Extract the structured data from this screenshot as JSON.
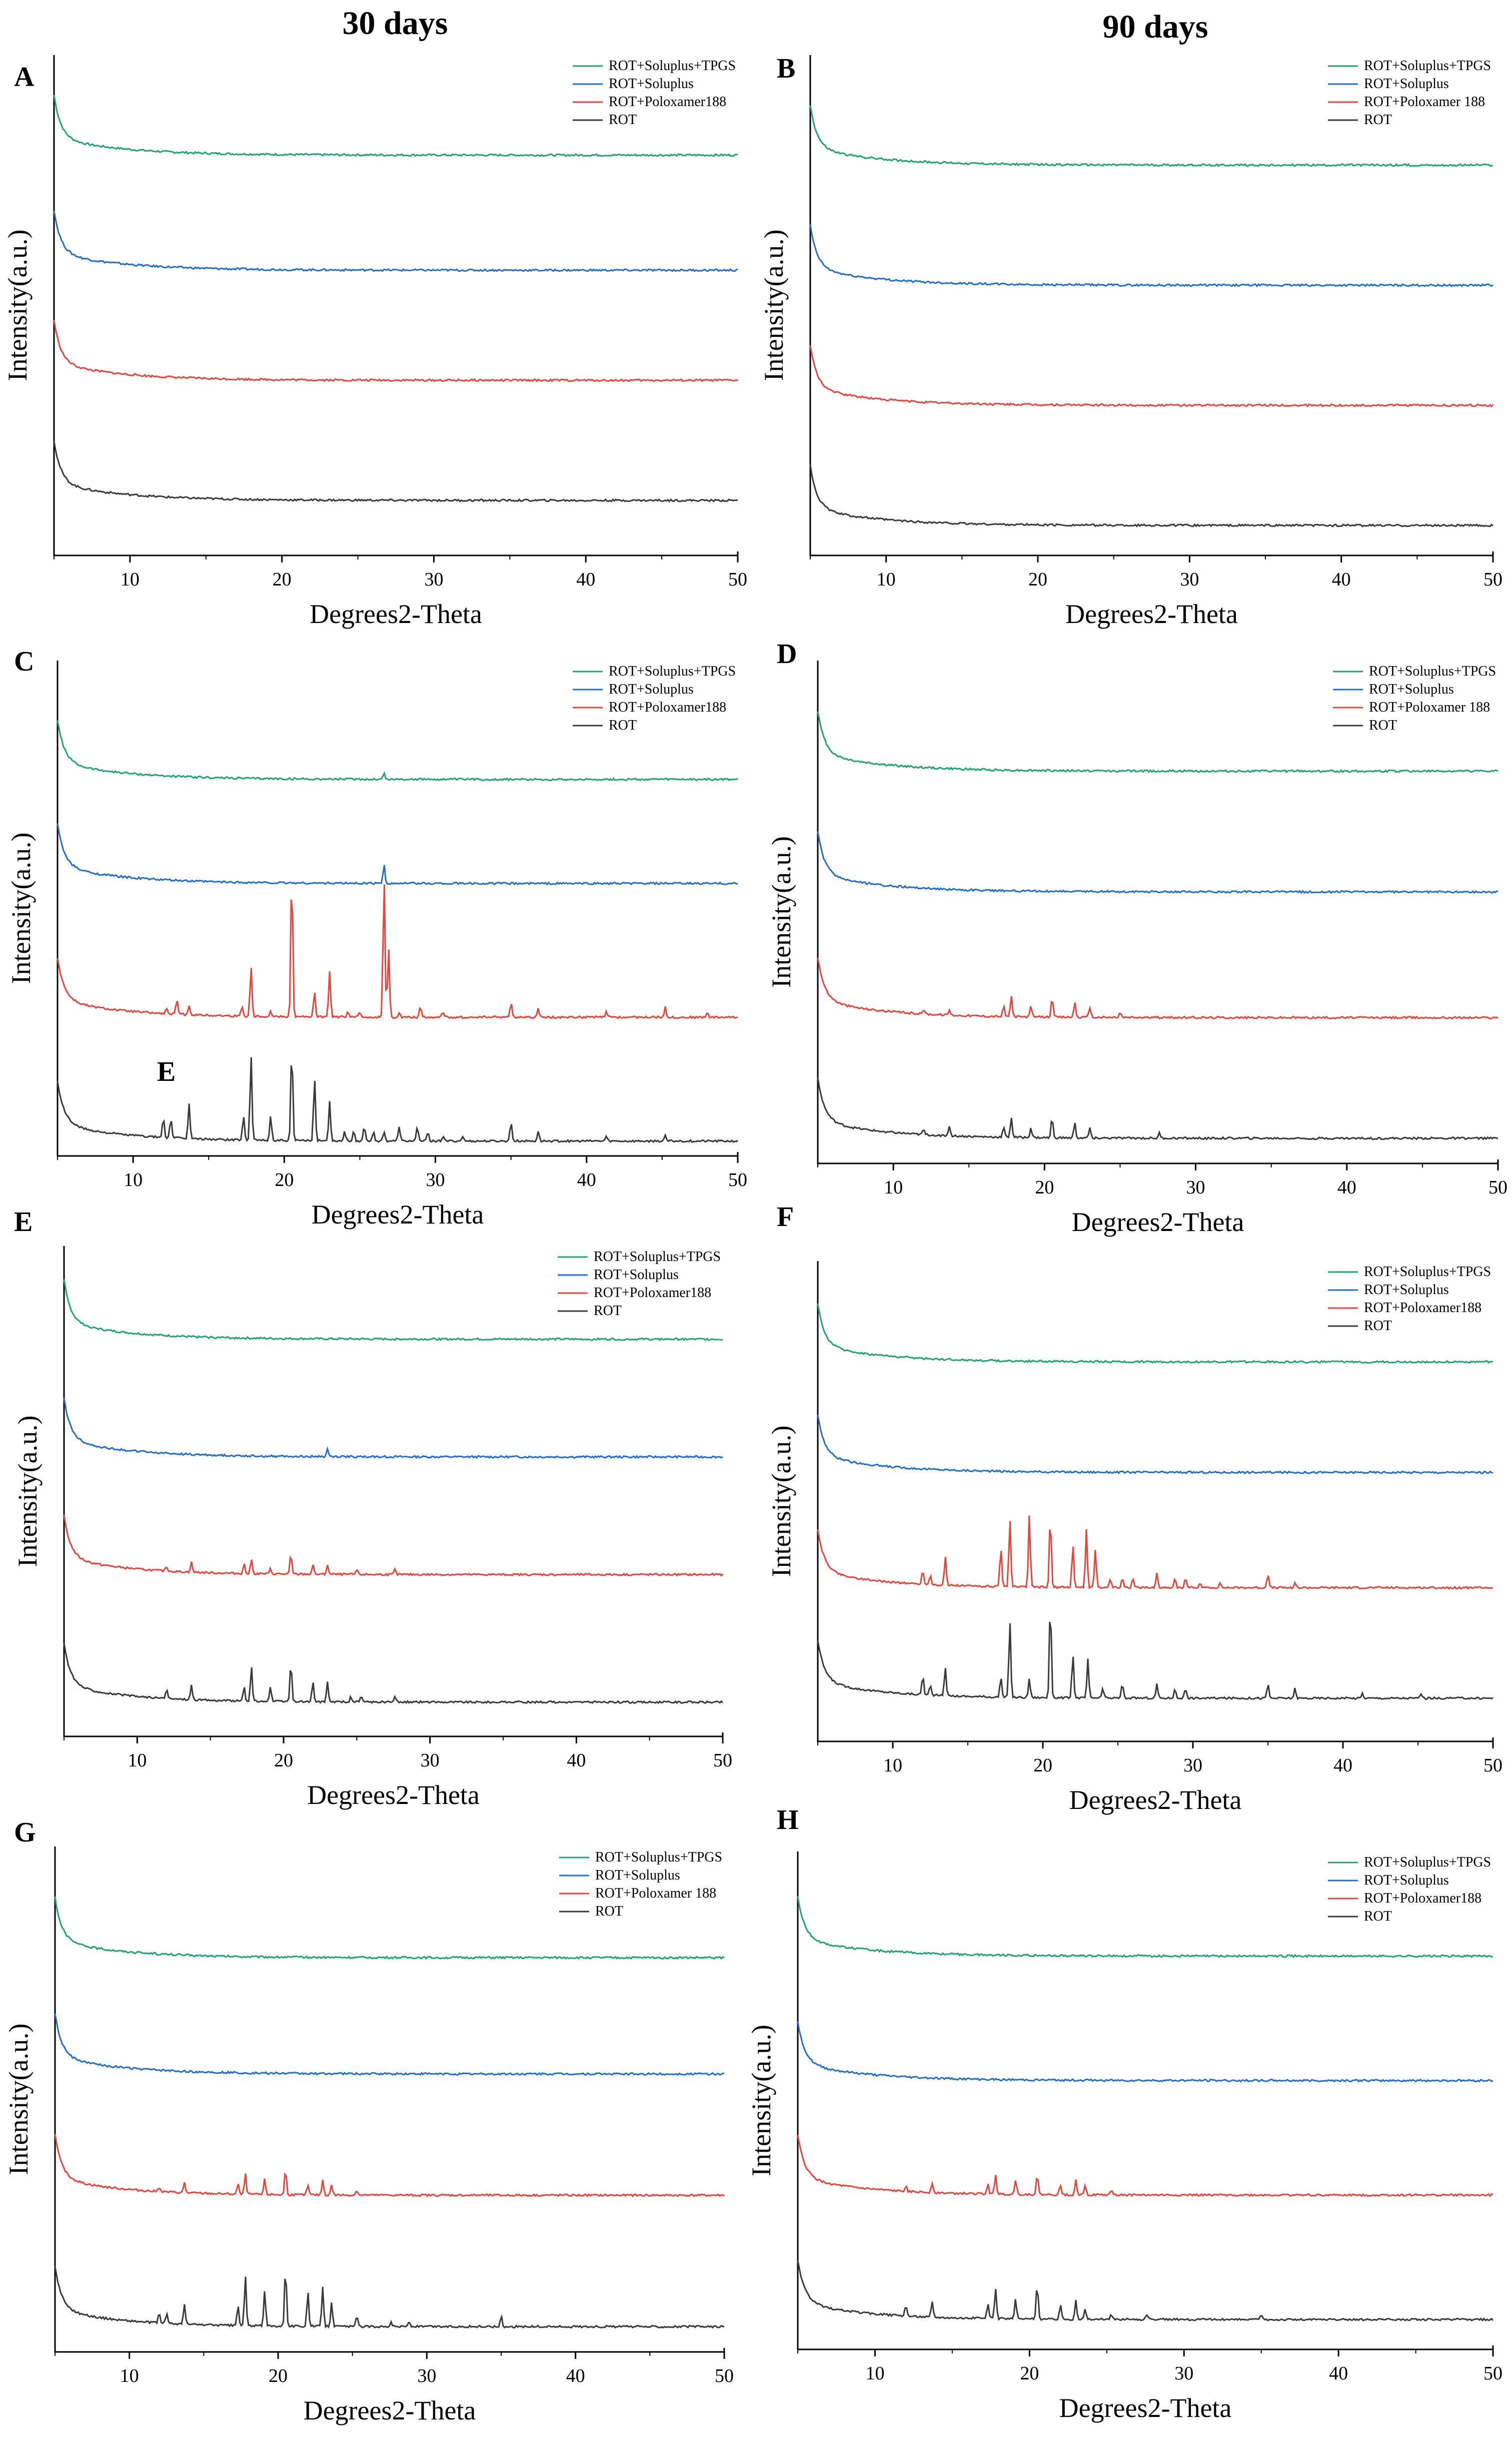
{
  "figure": {
    "column_titles": [
      "30 days",
      "90 days"
    ]
  },
  "chart_data": [
    {
      "panel": "A",
      "type": "line",
      "xlabel": "Degrees2-Theta",
      "ylabel": "Intensity(a.u.)",
      "xlim": [
        5,
        50
      ],
      "xticks": [
        10,
        20,
        30,
        40,
        50
      ],
      "legend": [
        "ROT+Soluplus+TPGS",
        "ROT+Soluplus",
        "ROT+Poloxamer188",
        "ROT"
      ],
      "legend_position": "top-right",
      "series": [
        {
          "name": "ROT+Soluplus+TPGS",
          "color": "#1ea672",
          "baseline": 0.8,
          "peaks": []
        },
        {
          "name": "ROT+Soluplus",
          "color": "#1f6fd1",
          "baseline": 0.57,
          "peaks": []
        },
        {
          "name": "ROT+Poloxamer188",
          "color": "#e8443a",
          "baseline": 0.35,
          "peaks": []
        },
        {
          "name": "ROT",
          "color": "#3a3a3a",
          "baseline": 0.11,
          "peaks": []
        }
      ]
    },
    {
      "panel": "B",
      "type": "line",
      "xlabel": "Degrees2-Theta",
      "ylabel": "Intensity(a.u.)",
      "xlim": [
        5,
        50
      ],
      "xticks": [
        10,
        20,
        30,
        40,
        50
      ],
      "legend": [
        "ROT+Soluplus+TPGS",
        "ROT+Soluplus",
        "ROT+Poloxamer 188",
        "ROT"
      ],
      "legend_position": "top-right",
      "series": [
        {
          "name": "ROT+Soluplus+TPGS",
          "color": "#1ea672",
          "baseline": 0.78,
          "peaks": []
        },
        {
          "name": "ROT+Soluplus",
          "color": "#1f6fd1",
          "baseline": 0.54,
          "peaks": []
        },
        {
          "name": "ROT+Poloxamer 188",
          "color": "#e8443a",
          "baseline": 0.3,
          "peaks": []
        },
        {
          "name": "ROT",
          "color": "#3a3a3a",
          "baseline": 0.06,
          "peaks": []
        }
      ]
    },
    {
      "panel": "C",
      "type": "line",
      "xlabel": "Degrees2-Theta",
      "ylabel": "Intensity(a.u.)",
      "xlim": [
        5,
        50
      ],
      "xticks": [
        10,
        20,
        30,
        40,
        50
      ],
      "legend": [
        "ROT+Soluplus+TPGS",
        "ROT+Soluplus",
        "ROT+Poloxamer188",
        "ROT"
      ],
      "legend_position": "top-right",
      "annotation": {
        "text": "E",
        "x": 12.2
      },
      "series": [
        {
          "name": "ROT+Soluplus+TPGS",
          "color": "#1ea672",
          "baseline": 0.76,
          "peaks": [
            [
              26.6,
              0.012
            ]
          ]
        },
        {
          "name": "ROT+Soluplus",
          "color": "#1f6fd1",
          "baseline": 0.55,
          "peaks": [
            [
              26.6,
              0.04
            ]
          ]
        },
        {
          "name": "ROT+Poloxamer188",
          "color": "#e8443a",
          "baseline": 0.28,
          "peaks": [
            [
              12.2,
              0.01
            ],
            [
              12.9,
              0.03
            ],
            [
              13.7,
              0.02
            ],
            [
              17.2,
              0.02
            ],
            [
              17.8,
              0.1
            ],
            [
              19.1,
              0.01
            ],
            [
              20.5,
              0.3
            ],
            [
              22.0,
              0.05
            ],
            [
              23.0,
              0.09
            ],
            [
              24.2,
              0.01
            ],
            [
              25.0,
              0.01
            ],
            [
              26.6,
              0.28
            ],
            [
              26.9,
              0.14
            ],
            [
              27.6,
              0.01
            ],
            [
              29.0,
              0.02
            ],
            [
              30.5,
              0.01
            ],
            [
              35.0,
              0.03
            ],
            [
              36.8,
              0.02
            ],
            [
              41.3,
              0.01
            ],
            [
              45.2,
              0.02
            ],
            [
              48.0,
              0.01
            ]
          ]
        },
        {
          "name": "ROT",
          "color": "#3a3a3a",
          "baseline": 0.03,
          "peaks": [
            [
              12.0,
              0.04
            ],
            [
              12.5,
              0.04
            ],
            [
              13.7,
              0.07
            ],
            [
              17.3,
              0.05
            ],
            [
              17.8,
              0.17
            ],
            [
              19.1,
              0.05
            ],
            [
              20.5,
              0.19
            ],
            [
              22.0,
              0.13
            ],
            [
              23.0,
              0.08
            ],
            [
              24.0,
              0.02
            ],
            [
              24.6,
              0.02
            ],
            [
              25.3,
              0.03
            ],
            [
              25.9,
              0.02
            ],
            [
              26.6,
              0.02
            ],
            [
              27.6,
              0.03
            ],
            [
              28.8,
              0.03
            ],
            [
              29.5,
              0.02
            ],
            [
              30.5,
              0.01
            ],
            [
              31.8,
              0.01
            ],
            [
              35.0,
              0.04
            ],
            [
              36.8,
              0.02
            ],
            [
              41.3,
              0.01
            ],
            [
              45.2,
              0.01
            ]
          ]
        }
      ]
    },
    {
      "panel": "D",
      "type": "line",
      "xlabel": "Degrees2-Theta",
      "ylabel": "Intensity(a.u.)",
      "xlim": [
        5,
        50
      ],
      "xticks": [
        10,
        20,
        30,
        40,
        50
      ],
      "legend": [
        "ROT+Soluplus+TPGS",
        "ROT+Soluplus",
        "ROT+Poloxamer 188",
        "ROT"
      ],
      "legend_position": "top-right",
      "series": [
        {
          "name": "ROT+Soluplus+TPGS",
          "color": "#1ea672",
          "baseline": 0.78,
          "peaks": []
        },
        {
          "name": "ROT+Soluplus",
          "color": "#1f6fd1",
          "baseline": 0.54,
          "peaks": []
        },
        {
          "name": "ROT+Poloxamer 188",
          "color": "#e8443a",
          "baseline": 0.29,
          "peaks": [
            [
              12.0,
              0.01
            ],
            [
              13.7,
              0.01
            ],
            [
              17.3,
              0.02
            ],
            [
              17.8,
              0.04
            ],
            [
              19.1,
              0.02
            ],
            [
              20.5,
              0.04
            ],
            [
              22.0,
              0.03
            ],
            [
              23.0,
              0.02
            ],
            [
              25.0,
              0.01
            ]
          ]
        },
        {
          "name": "ROT",
          "color": "#3a3a3a",
          "baseline": 0.05,
          "peaks": [
            [
              12.0,
              0.01
            ],
            [
              13.7,
              0.02
            ],
            [
              17.3,
              0.02
            ],
            [
              17.8,
              0.04
            ],
            [
              19.1,
              0.02
            ],
            [
              20.5,
              0.04
            ],
            [
              22.0,
              0.03
            ],
            [
              23.0,
              0.02
            ],
            [
              27.6,
              0.01
            ]
          ]
        }
      ]
    },
    {
      "panel": "E",
      "type": "line",
      "xlabel": "Degrees2-Theta",
      "ylabel": "Intensity(a.u.)",
      "xlim": [
        5,
        50
      ],
      "xticks": [
        10,
        20,
        30,
        40,
        50
      ],
      "legend": [
        "ROT+Soluplus+TPGS",
        "ROT+Soluplus",
        "ROT+Poloxamer188",
        "ROT"
      ],
      "legend_position": "top-right",
      "series": [
        {
          "name": "ROT+Soluplus+TPGS",
          "color": "#1ea672",
          "baseline": 0.81,
          "peaks": []
        },
        {
          "name": "ROT+Soluplus",
          "color": "#1f6fd1",
          "baseline": 0.57,
          "peaks": [
            [
              23.0,
              0.015
            ]
          ]
        },
        {
          "name": "ROT+Poloxamer188",
          "color": "#e8443a",
          "baseline": 0.33,
          "peaks": [
            [
              12.0,
              0.01
            ],
            [
              13.7,
              0.02
            ],
            [
              17.3,
              0.02
            ],
            [
              17.8,
              0.03
            ],
            [
              19.1,
              0.01
            ],
            [
              20.5,
              0.04
            ],
            [
              22.0,
              0.02
            ],
            [
              23.0,
              0.02
            ],
            [
              25.0,
              0.01
            ],
            [
              27.6,
              0.01
            ]
          ]
        },
        {
          "name": "ROT",
          "color": "#3a3a3a",
          "baseline": 0.07,
          "peaks": [
            [
              12.0,
              0.02
            ],
            [
              13.7,
              0.03
            ],
            [
              17.3,
              0.03
            ],
            [
              17.8,
              0.07
            ],
            [
              19.1,
              0.03
            ],
            [
              20.5,
              0.08
            ],
            [
              22.0,
              0.04
            ],
            [
              23.0,
              0.04
            ],
            [
              24.6,
              0.01
            ],
            [
              25.3,
              0.01
            ],
            [
              27.6,
              0.01
            ]
          ]
        }
      ]
    },
    {
      "panel": "F",
      "type": "line",
      "xlabel": "Degrees2-Theta",
      "ylabel": "Intensity(a.u.)",
      "xlim": [
        5,
        50
      ],
      "xticks": [
        10,
        20,
        30,
        40,
        50
      ],
      "legend": [
        "ROT+Soluplus+TPGS",
        "ROT+Soluplus",
        "ROT+Poloxamer188",
        "ROT"
      ],
      "legend_position": "top-right",
      "series": [
        {
          "name": "ROT+Soluplus+TPGS",
          "color": "#1ea672",
          "baseline": 0.79,
          "peaks": []
        },
        {
          "name": "ROT+Soluplus",
          "color": "#1f6fd1",
          "baseline": 0.56,
          "peaks": []
        },
        {
          "name": "ROT+Poloxamer188",
          "color": "#e8443a",
          "baseline": 0.32,
          "peaks": [
            [
              12.0,
              0.03
            ],
            [
              12.5,
              0.02
            ],
            [
              13.5,
              0.06
            ],
            [
              17.2,
              0.08
            ],
            [
              17.8,
              0.14
            ],
            [
              19.1,
              0.15
            ],
            [
              20.5,
              0.15
            ],
            [
              22.0,
              0.09
            ],
            [
              22.9,
              0.12
            ],
            [
              23.5,
              0.08
            ],
            [
              24.5,
              0.02
            ],
            [
              25.3,
              0.02
            ],
            [
              26.0,
              0.02
            ],
            [
              27.6,
              0.03
            ],
            [
              28.8,
              0.02
            ],
            [
              29.5,
              0.02
            ],
            [
              30.5,
              0.01
            ],
            [
              31.8,
              0.01
            ],
            [
              35.0,
              0.03
            ],
            [
              36.8,
              0.01
            ]
          ]
        },
        {
          "name": "ROT",
          "color": "#3a3a3a",
          "baseline": 0.09,
          "peaks": [
            [
              12.0,
              0.04
            ],
            [
              12.5,
              0.02
            ],
            [
              13.5,
              0.06
            ],
            [
              17.2,
              0.04
            ],
            [
              17.8,
              0.16
            ],
            [
              19.1,
              0.04
            ],
            [
              20.5,
              0.2
            ],
            [
              22.0,
              0.09
            ],
            [
              23.0,
              0.08
            ],
            [
              24.0,
              0.02
            ],
            [
              25.3,
              0.03
            ],
            [
              27.6,
              0.03
            ],
            [
              28.8,
              0.02
            ],
            [
              29.5,
              0.02
            ],
            [
              35.0,
              0.03
            ],
            [
              36.8,
              0.02
            ],
            [
              41.3,
              0.01
            ],
            [
              45.2,
              0.01
            ]
          ]
        }
      ]
    },
    {
      "panel": "G",
      "type": "line",
      "xlabel": "Degrees2-Theta",
      "ylabel": "Intensity(a.u.)",
      "xlim": [
        5,
        50
      ],
      "xticks": [
        10,
        20,
        30,
        40,
        50
      ],
      "legend": [
        "ROT+Soluplus+TPGS",
        "ROT+Soluplus",
        "ROT+Poloxamer 188",
        "ROT"
      ],
      "legend_position": "top-right",
      "series": [
        {
          "name": "ROT+Soluplus+TPGS",
          "color": "#1ea672",
          "baseline": 0.78,
          "peaks": []
        },
        {
          "name": "ROT+Soluplus",
          "color": "#1f6fd1",
          "baseline": 0.55,
          "peaks": []
        },
        {
          "name": "ROT+Poloxamer 188",
          "color": "#e8443a",
          "baseline": 0.31,
          "peaks": [
            [
              12.0,
              0.01
            ],
            [
              13.7,
              0.02
            ],
            [
              17.3,
              0.02
            ],
            [
              17.8,
              0.04
            ],
            [
              19.1,
              0.03
            ],
            [
              20.5,
              0.05
            ],
            [
              22.0,
              0.02
            ],
            [
              23.0,
              0.03
            ],
            [
              23.6,
              0.02
            ],
            [
              25.3,
              0.01
            ]
          ]
        },
        {
          "name": "ROT",
          "color": "#3a3a3a",
          "baseline": 0.05,
          "peaks": [
            [
              12.0,
              0.02
            ],
            [
              12.5,
              0.02
            ],
            [
              13.7,
              0.04
            ],
            [
              17.3,
              0.04
            ],
            [
              17.8,
              0.1
            ],
            [
              19.1,
              0.07
            ],
            [
              20.5,
              0.12
            ],
            [
              22.0,
              0.07
            ],
            [
              23.0,
              0.08
            ],
            [
              23.6,
              0.05
            ],
            [
              25.3,
              0.02
            ],
            [
              27.6,
              0.01
            ],
            [
              28.8,
              0.01
            ],
            [
              35.0,
              0.02
            ]
          ]
        }
      ]
    },
    {
      "panel": "H",
      "type": "line",
      "xlabel": "Degrees2-Theta",
      "ylabel": "Intensity(a.u.)",
      "xlim": [
        5,
        50
      ],
      "xticks": [
        10,
        20,
        30,
        40,
        50
      ],
      "legend": [
        "ROT+Soluplus+TPGS",
        "ROT+Soluplus",
        "ROT+Poloxamer188",
        "ROT"
      ],
      "legend_position": "top-right",
      "series": [
        {
          "name": "ROT+Soluplus+TPGS",
          "color": "#1ea672",
          "baseline": 0.79,
          "peaks": []
        },
        {
          "name": "ROT+Soluplus",
          "color": "#1f6fd1",
          "baseline": 0.54,
          "peaks": []
        },
        {
          "name": "ROT+Poloxamer188",
          "color": "#e8443a",
          "baseline": 0.31,
          "peaks": [
            [
              12.0,
              0.01
            ],
            [
              13.7,
              0.02
            ],
            [
              17.3,
              0.02
            ],
            [
              17.8,
              0.04
            ],
            [
              19.1,
              0.03
            ],
            [
              20.5,
              0.04
            ],
            [
              22.0,
              0.02
            ],
            [
              23.0,
              0.03
            ],
            [
              23.6,
              0.02
            ],
            [
              25.3,
              0.01
            ]
          ]
        },
        {
          "name": "ROT",
          "color": "#3a3a3a",
          "baseline": 0.06,
          "peaks": [
            [
              12.0,
              0.02
            ],
            [
              13.7,
              0.03
            ],
            [
              17.3,
              0.03
            ],
            [
              17.8,
              0.06
            ],
            [
              19.1,
              0.04
            ],
            [
              20.5,
              0.07
            ],
            [
              22.0,
              0.03
            ],
            [
              23.0,
              0.04
            ],
            [
              23.6,
              0.02
            ],
            [
              25.3,
              0.01
            ],
            [
              27.6,
              0.01
            ],
            [
              35.0,
              0.01
            ]
          ]
        }
      ]
    }
  ]
}
